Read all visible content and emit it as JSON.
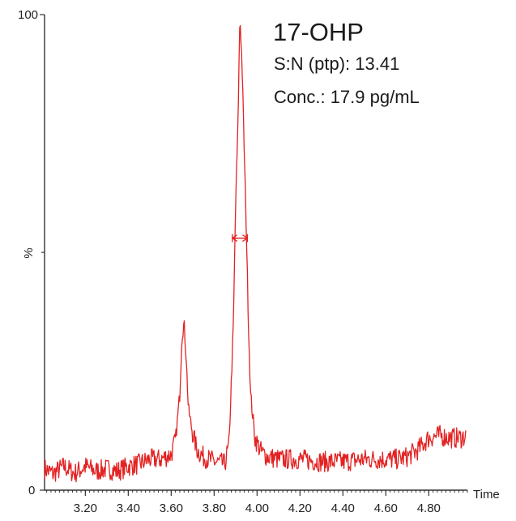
{
  "chart_data": {
    "type": "line",
    "title": "",
    "annotations": {
      "compound": "17-OHP",
      "sn": "S:N (ptp): 13.41",
      "conc": "Conc.: 17.9 pg/mL"
    },
    "xlabel": "Time",
    "ylabel": "%",
    "xlim": [
      3.01,
      4.98
    ],
    "ylim": [
      0,
      100
    ],
    "x_ticks": [
      "3.20",
      "3.40",
      "3.60",
      "3.80",
      "4.00",
      "4.20",
      "4.40",
      "4.60",
      "4.80"
    ],
    "y_ticks": [
      "0",
      "100"
    ],
    "grid": false,
    "series": [
      {
        "color": "#e32222",
        "x": [
          3.01,
          3.05,
          3.1,
          3.15,
          3.2,
          3.25,
          3.3,
          3.35,
          3.4,
          3.45,
          3.5,
          3.55,
          3.6,
          3.62,
          3.64,
          3.65,
          3.66,
          3.67,
          3.68,
          3.7,
          3.72,
          3.75,
          3.8,
          3.85,
          3.87,
          3.89,
          3.9,
          3.91,
          3.92,
          3.93,
          3.94,
          3.95,
          3.96,
          3.97,
          3.99,
          4.02,
          4.05,
          4.1,
          4.15,
          4.2,
          4.3,
          4.4,
          4.5,
          4.6,
          4.65,
          4.7,
          4.75,
          4.8,
          4.85,
          4.9,
          4.95,
          4.98
        ],
        "y": [
          4.5,
          3.5,
          5.0,
          3.5,
          5.0,
          4.0,
          4.5,
          4.0,
          5.0,
          5.5,
          6.5,
          6.5,
          7.5,
          10.5,
          20.0,
          32.5,
          35.0,
          28.0,
          17.0,
          12.0,
          8.5,
          7.0,
          6.0,
          5.5,
          10.0,
          35.0,
          60.0,
          75.0,
          100.0,
          90.0,
          72.0,
          55.0,
          35.0,
          20.0,
          11.0,
          8.0,
          7.0,
          6.5,
          6.5,
          6.5,
          6.0,
          6.0,
          6.5,
          6.5,
          6.5,
          7.0,
          8.5,
          11.0,
          11.5,
          11.0,
          11.0,
          11.5
        ]
      }
    ],
    "peak_width_marker": {
      "x_start": 3.885,
      "x_end": 3.955,
      "y": 53.0
    }
  }
}
